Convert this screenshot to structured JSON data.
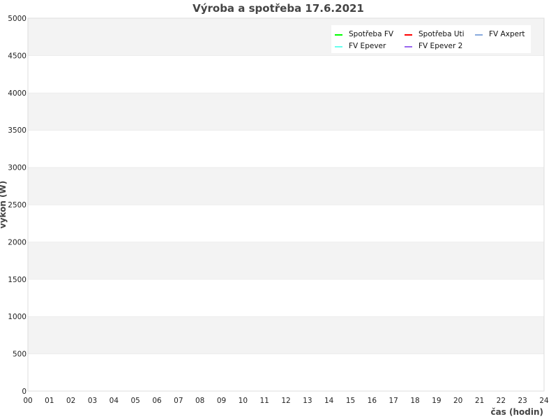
{
  "chart_data": {
    "type": "line",
    "title": "Výroba a spotřeba 17.6.2021",
    "xlabel": "čas (hodin)",
    "ylabel": "výkon (W)",
    "xlim": [
      0,
      24
    ],
    "ylim": [
      0,
      5000
    ],
    "x_ticks": [
      "00",
      "01",
      "02",
      "03",
      "04",
      "05",
      "06",
      "07",
      "08",
      "09",
      "10",
      "11",
      "12",
      "13",
      "14",
      "15",
      "16",
      "17",
      "18",
      "19",
      "20",
      "21",
      "22",
      "23",
      "24"
    ],
    "y_ticks": [
      0,
      500,
      1000,
      1500,
      2000,
      2500,
      3000,
      3500,
      4000,
      4500,
      5000
    ],
    "grid": true,
    "legend_position": "top-right",
    "series": [
      {
        "name": "Spotřeba FV",
        "color": "#00ff00",
        "values": []
      },
      {
        "name": "Spotřeba Uti",
        "color": "#ff0000",
        "values": []
      },
      {
        "name": "FV Axpert",
        "color": "#88aadd",
        "values": []
      },
      {
        "name": "FV Epever",
        "color": "#66ffee",
        "values": []
      },
      {
        "name": "FV Epever 2",
        "color": "#9966ee",
        "values": []
      }
    ]
  }
}
